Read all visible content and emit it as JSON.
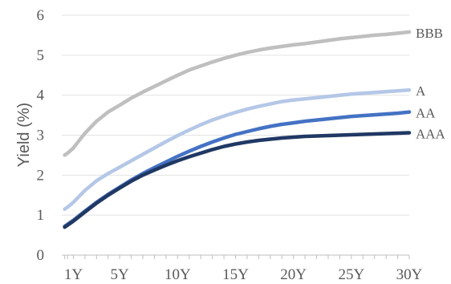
{
  "chart_data": {
    "type": "line",
    "title": "",
    "xlabel": "",
    "ylabel": "Yield (%)",
    "ylim": [
      0,
      6
    ],
    "yticks": [
      0,
      1,
      2,
      3,
      4,
      5,
      6
    ],
    "x_tick_labels": [
      {
        "label": "1Y",
        "x": 1
      },
      {
        "label": "5Y",
        "x": 5
      },
      {
        "label": "10Y",
        "x": 10
      },
      {
        "label": "15Y",
        "x": 15
      },
      {
        "label": "20Y",
        "x": 20
      },
      {
        "label": "25Y",
        "x": 25
      },
      {
        "label": "30Y",
        "x": 30
      }
    ],
    "x": [
      0.25,
      0.5,
      1,
      2,
      3,
      4,
      5,
      6,
      7,
      8,
      9,
      10,
      11,
      12,
      13,
      14,
      15,
      16,
      17,
      18,
      19,
      20,
      21,
      22,
      23,
      24,
      25,
      26,
      27,
      28,
      29,
      30
    ],
    "grid": {
      "horizontal": true,
      "vertical": false
    },
    "series": [
      {
        "name": "BBB",
        "color": "#bfbfbf",
        "values": [
          2.5,
          2.55,
          2.68,
          3.05,
          3.35,
          3.58,
          3.75,
          3.93,
          4.08,
          4.22,
          4.36,
          4.5,
          4.63,
          4.73,
          4.83,
          4.92,
          5.0,
          5.07,
          5.13,
          5.18,
          5.22,
          5.26,
          5.29,
          5.33,
          5.37,
          5.41,
          5.44,
          5.47,
          5.5,
          5.52,
          5.55,
          5.58
        ]
      },
      {
        "name": "A",
        "color": "#b4c7e7",
        "values": [
          1.15,
          1.2,
          1.32,
          1.62,
          1.86,
          2.04,
          2.2,
          2.36,
          2.52,
          2.68,
          2.84,
          2.99,
          3.13,
          3.26,
          3.38,
          3.48,
          3.57,
          3.65,
          3.72,
          3.78,
          3.84,
          3.88,
          3.91,
          3.94,
          3.97,
          4.0,
          4.03,
          4.05,
          4.07,
          4.09,
          4.11,
          4.13
        ]
      },
      {
        "name": "AA",
        "color": "#4472c4",
        "values": [
          0.72,
          0.77,
          0.87,
          1.1,
          1.32,
          1.52,
          1.7,
          1.88,
          2.04,
          2.19,
          2.33,
          2.47,
          2.6,
          2.72,
          2.83,
          2.93,
          3.02,
          3.09,
          3.16,
          3.22,
          3.27,
          3.31,
          3.35,
          3.38,
          3.41,
          3.44,
          3.47,
          3.49,
          3.51,
          3.53,
          3.55,
          3.58
        ]
      },
      {
        "name": "AAA",
        "color": "#203864",
        "values": [
          0.7,
          0.75,
          0.85,
          1.08,
          1.3,
          1.5,
          1.68,
          1.85,
          2.0,
          2.13,
          2.25,
          2.36,
          2.46,
          2.55,
          2.64,
          2.72,
          2.78,
          2.83,
          2.87,
          2.9,
          2.93,
          2.95,
          2.97,
          2.98,
          2.99,
          3.0,
          3.01,
          3.02,
          3.03,
          3.04,
          3.05,
          3.06
        ]
      }
    ]
  }
}
